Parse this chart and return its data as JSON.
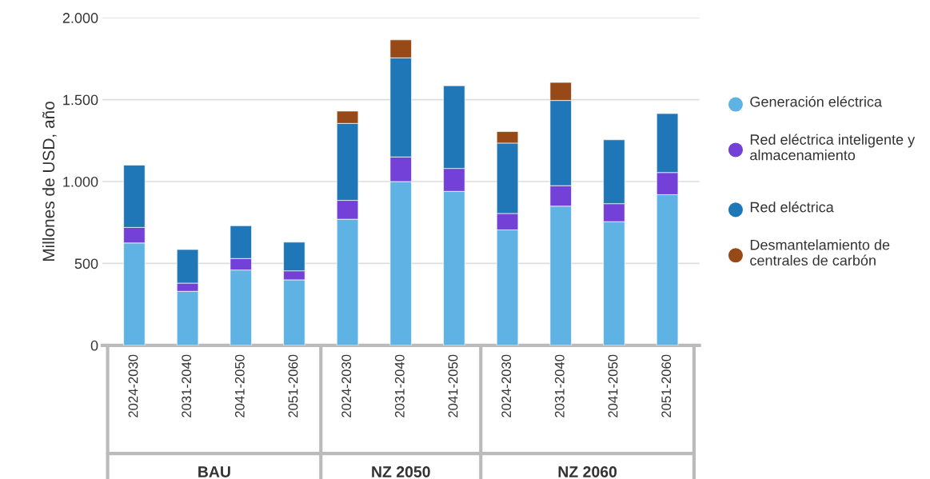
{
  "chart_data": {
    "type": "bar",
    "stacked": true,
    "ylabel": "Millones de USD, año",
    "categories": [
      "2024-2030",
      "2031-2040",
      "2041-2050",
      "2051-2060",
      "2024-2030",
      "2031-2040",
      "2041-2050",
      "2024-2030",
      "2031-2040",
      "2041-2050",
      "2051-2060"
    ],
    "series": [
      {
        "name": "Generación eléctrica",
        "color": "#5eb3e4",
        "values": [
          625,
          330,
          460,
          400,
          770,
          1000,
          940,
          705,
          850,
          755,
          920
        ]
      },
      {
        "name": "Red eléctrica inteligente y almacenamiento",
        "color": "#7340d8",
        "values": [
          95,
          50,
          70,
          55,
          115,
          150,
          140,
          100,
          125,
          110,
          135
        ]
      },
      {
        "name": "Red eléctrica",
        "color": "#1f77b8",
        "values": [
          380,
          205,
          200,
          175,
          470,
          605,
          505,
          430,
          520,
          390,
          360
        ]
      },
      {
        "name": "Desmantelamiento de centrales de carbón",
        "color": "#974a17",
        "values": [
          null,
          null,
          null,
          null,
          75,
          110,
          null,
          70,
          110,
          null,
          null
        ]
      }
    ],
    "ylim": [
      0,
      2000
    ],
    "yticks": [
      0,
      500,
      {
        "value": 1000,
        "label": "1.000"
      },
      {
        "value": 1500,
        "label": "1.500"
      },
      {
        "value": 2000,
        "label": "2.000"
      }
    ],
    "grid": "y",
    "legend": "right",
    "annotations": [
      "BAU",
      "NZ 2050",
      "NZ 2060"
    ]
  }
}
